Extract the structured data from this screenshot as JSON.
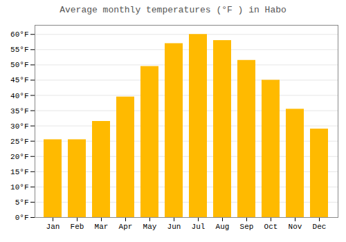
{
  "chart_data": {
    "type": "bar",
    "title": "Average monthly temperatures (°F ) in Habo",
    "categories": [
      "Jan",
      "Feb",
      "Mar",
      "Apr",
      "May",
      "Jun",
      "Jul",
      "Aug",
      "Sep",
      "Oct",
      "Nov",
      "Dec"
    ],
    "values": [
      25.5,
      25.5,
      31.5,
      39.5,
      49.5,
      57,
      60,
      58,
      51.5,
      45,
      35.5,
      29
    ],
    "color": "#FFBA00",
    "ylim": [
      0,
      63
    ],
    "yticks": [
      {
        "value": 0,
        "label": "0°F"
      },
      {
        "value": 5,
        "label": "5°F"
      },
      {
        "value": 10,
        "label": "10°F"
      },
      {
        "value": 15,
        "label": "15°F"
      },
      {
        "value": 20,
        "label": "20°F"
      },
      {
        "value": 25,
        "label": "25°F"
      },
      {
        "value": 30,
        "label": "30°F"
      },
      {
        "value": 35,
        "label": "35°F"
      },
      {
        "value": 40,
        "label": "40°F"
      },
      {
        "value": 45,
        "label": "45°F"
      },
      {
        "value": 50,
        "label": "50°F"
      },
      {
        "value": 55,
        "label": "55°F"
      },
      {
        "value": 60,
        "label": "60°F"
      }
    ],
    "grid": true
  }
}
